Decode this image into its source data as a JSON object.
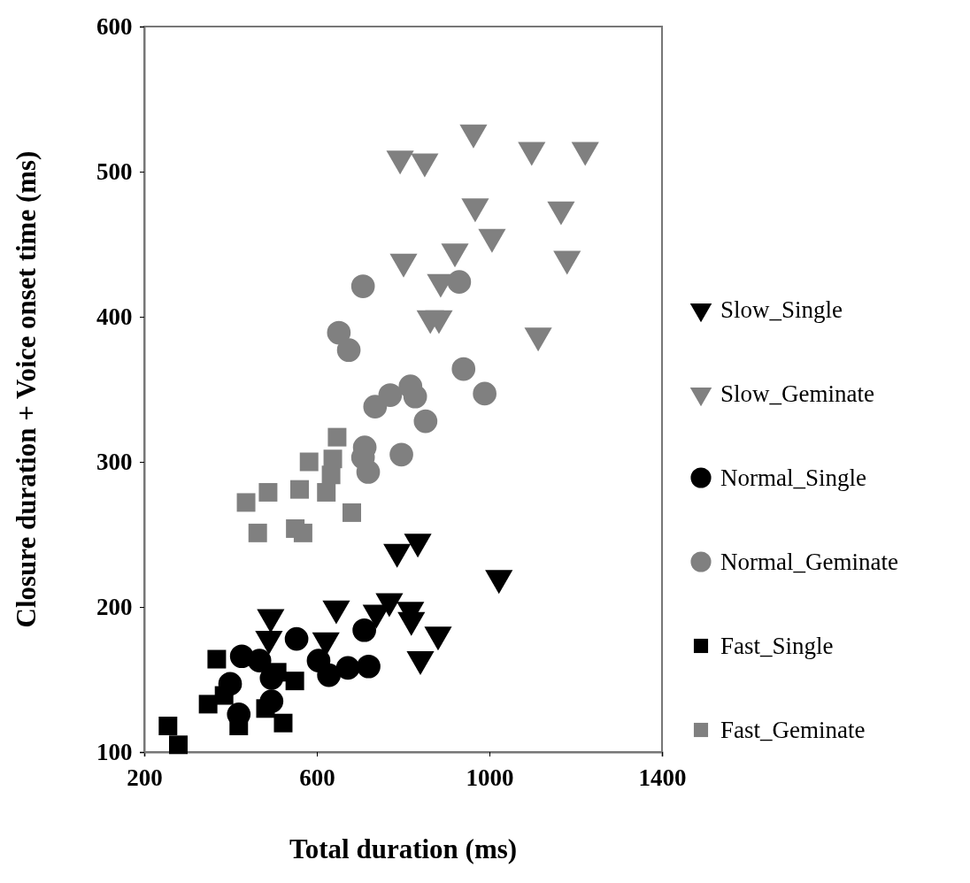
{
  "chart_data": {
    "type": "scatter",
    "xlabel": "Total duration (ms)",
    "ylabel": "Closure duration + Voice onset time (ms)",
    "xlim": [
      200,
      1400
    ],
    "xticks": [
      200,
      600,
      1000,
      1400
    ],
    "ylim": [
      100,
      600
    ],
    "yticks": [
      100,
      200,
      300,
      400,
      500,
      600
    ],
    "grid": false,
    "legend": "right",
    "series": [
      {
        "name": "Slow_Single",
        "color": "#000000",
        "marker": "triangle",
        "x": [
          786,
          834,
          1022,
          493,
          489,
          645,
          738,
          768,
          817,
          819,
          881,
          840,
          621
        ],
        "values": [
          238,
          245,
          220,
          193,
          178,
          199,
          196,
          204,
          198,
          191,
          181,
          164,
          177
        ]
      },
      {
        "name": "Slow_Geminate",
        "color": "#808080",
        "marker": "triangle",
        "x": [
          793,
          850,
          963,
          1098,
          1222,
          967,
          1166,
          1006,
          920,
          801,
          887,
          1180,
          863,
          883,
          1113
        ],
        "values": [
          509,
          507,
          527,
          515,
          515,
          476,
          474,
          455,
          445,
          438,
          424,
          440,
          399,
          399,
          387
        ]
      },
      {
        "name": "Normal_Single",
        "color": "#000000",
        "marker": "circle",
        "x": [
          553,
          710,
          720,
          672,
          628,
          604,
          426,
          467,
          399,
          495,
          495,
          419
        ],
        "values": [
          178,
          184,
          159,
          158,
          153,
          163,
          166,
          163,
          147,
          151,
          135,
          126
        ]
      },
      {
        "name": "Normal_Geminate",
        "color": "#808080",
        "marker": "circle",
        "x": [
          707,
          930,
          651,
          674,
          940,
          989,
          735,
          770,
          817,
          828,
          852,
          711,
          707,
          719,
          796
        ],
        "values": [
          421,
          424,
          389,
          377,
          364,
          347,
          338,
          346,
          352,
          345,
          328,
          310,
          303,
          293,
          305
        ]
      },
      {
        "name": "Fast_Single",
        "color": "#000000",
        "marker": "square",
        "x": [
          368,
          348,
          255,
          279,
          419,
          522,
          549,
          385,
          481,
          508
        ],
        "values": [
          164,
          133,
          118,
          105,
          118,
          120,
          149,
          139,
          130,
          155
        ]
      },
      {
        "name": "Fast_Geminate",
        "color": "#808080",
        "marker": "square",
        "x": [
          647,
          582,
          637,
          633,
          622,
          487,
          436,
          681,
          463,
          550,
          568,
          560
        ],
        "values": [
          317,
          300,
          302,
          291,
          279,
          279,
          272,
          265,
          251,
          254,
          251,
          281
        ]
      }
    ]
  }
}
